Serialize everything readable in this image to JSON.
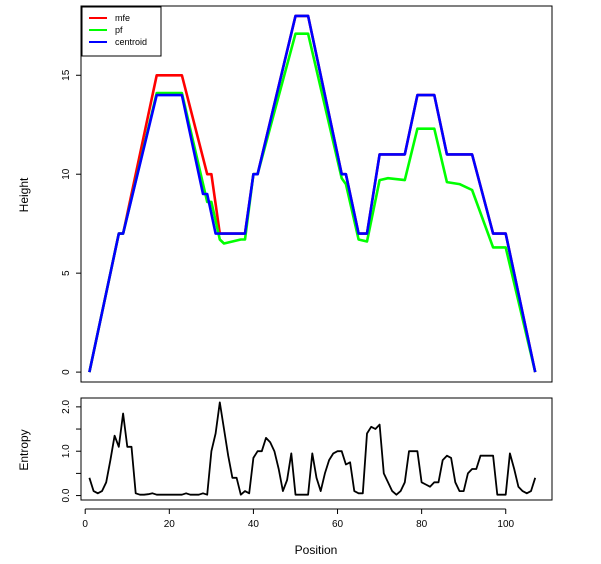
{
  "chart_data": [
    {
      "type": "line",
      "ylabel": "Height",
      "xlim": [
        -1,
        111
      ],
      "ylim": [
        -0.5,
        18.5
      ],
      "yticks": [
        0,
        5,
        10,
        15
      ],
      "legend": {
        "position": "top-left",
        "entries": [
          {
            "name": "mfe",
            "color": "#ff0000"
          },
          {
            "name": "pf",
            "color": "#00ff00"
          },
          {
            "name": "centroid",
            "color": "#0000ff"
          }
        ]
      },
      "series": [
        {
          "name": "mfe",
          "color": "#ff0000",
          "x": [
            1,
            8,
            9,
            17,
            23,
            29,
            30,
            32,
            38,
            40,
            41,
            50,
            53,
            61,
            62,
            65,
            67,
            70,
            76,
            79,
            83,
            86,
            92,
            97,
            100,
            107
          ],
          "y": [
            0,
            7,
            7,
            15,
            15,
            10,
            10,
            7,
            7,
            10,
            10,
            18,
            18,
            10,
            10,
            7,
            7,
            11,
            11,
            14,
            14,
            11,
            11,
            7,
            7,
            0
          ]
        },
        {
          "name": "pf",
          "color": "#00ff00",
          "x": [
            1,
            8,
            9,
            17,
            23,
            29,
            30,
            32,
            33,
            37,
            38,
            40,
            41,
            50,
            53,
            61,
            62,
            65,
            67,
            70,
            72,
            76,
            79,
            83,
            86,
            89,
            92,
            97,
            100,
            107
          ],
          "y": [
            0,
            7,
            7,
            14.1,
            14.1,
            8.6,
            8.6,
            6.7,
            6.5,
            6.7,
            6.7,
            10,
            10,
            17.1,
            17.1,
            9.8,
            9.5,
            6.7,
            6.6,
            9.7,
            9.8,
            9.7,
            12.3,
            12.3,
            9.6,
            9.5,
            9.2,
            6.3,
            6.3,
            0
          ]
        },
        {
          "name": "centroid",
          "color": "#0000ff",
          "x": [
            1,
            8,
            9,
            17,
            23,
            28,
            29,
            31,
            38,
            40,
            41,
            50,
            53,
            61,
            62,
            65,
            67,
            70,
            76,
            79,
            83,
            86,
            92,
            97,
            100,
            107
          ],
          "y": [
            0,
            7,
            7,
            14,
            14,
            9,
            9,
            7,
            7,
            10,
            10,
            18,
            18,
            10,
            10,
            7,
            7,
            11,
            11,
            14,
            14,
            11,
            11,
            7,
            7,
            0
          ]
        }
      ]
    },
    {
      "type": "line",
      "xlabel": "Position",
      "ylabel": "Entropy",
      "xlim": [
        -1,
        111
      ],
      "ylim": [
        -0.1,
        2.2
      ],
      "xticks": [
        0,
        20,
        40,
        60,
        80,
        100
      ],
      "yticks": [
        0.0,
        0.5,
        1.0,
        1.5,
        2.0
      ],
      "ytick_labels": [
        "0.0",
        "",
        "1.0",
        "",
        "2.0"
      ],
      "series": [
        {
          "name": "entropy",
          "color": "#000000",
          "x": [
            1,
            2,
            3,
            4,
            5,
            6,
            7,
            8,
            9,
            10,
            11,
            12,
            13,
            14,
            15,
            16,
            17,
            18,
            19,
            20,
            21,
            22,
            23,
            24,
            25,
            26,
            27,
            28,
            29,
            30,
            31,
            32,
            33,
            34,
            35,
            36,
            37,
            38,
            39,
            40,
            41,
            42,
            43,
            44,
            45,
            46,
            47,
            48,
            49,
            50,
            51,
            52,
            53,
            54,
            55,
            56,
            57,
            58,
            59,
            60,
            61,
            62,
            63,
            64,
            65,
            66,
            67,
            68,
            69,
            70,
            71,
            72,
            73,
            74,
            75,
            76,
            77,
            78,
            79,
            80,
            81,
            82,
            83,
            84,
            85,
            86,
            87,
            88,
            89,
            90,
            91,
            92,
            93,
            94,
            95,
            96,
            97,
            98,
            99,
            100,
            101,
            102,
            103,
            104,
            105,
            106,
            107
          ],
          "y": [
            0.4,
            0.1,
            0.05,
            0.1,
            0.3,
            0.8,
            1.35,
            1.1,
            1.85,
            1.1,
            1.1,
            0.05,
            0.02,
            0.02,
            0.03,
            0.05,
            0.02,
            0.02,
            0.02,
            0.02,
            0.02,
            0.02,
            0.02,
            0.05,
            0.02,
            0.02,
            0.02,
            0.05,
            0.02,
            1.0,
            1.4,
            2.1,
            1.5,
            0.9,
            0.4,
            0.4,
            0.02,
            0.1,
            0.05,
            0.85,
            1.0,
            1.0,
            1.3,
            1.2,
            1.0,
            0.6,
            0.1,
            0.35,
            0.95,
            0.02,
            0.02,
            0.02,
            0.02,
            0.95,
            0.4,
            0.1,
            0.5,
            0.8,
            0.95,
            1.0,
            1.0,
            0.7,
            0.75,
            0.1,
            0.05,
            0.05,
            1.4,
            1.55,
            1.5,
            1.6,
            0.5,
            0.3,
            0.1,
            0.02,
            0.1,
            0.3,
            1.0,
            1.0,
            1.0,
            0.3,
            0.25,
            0.2,
            0.3,
            0.3,
            0.8,
            0.9,
            0.85,
            0.3,
            0.1,
            0.1,
            0.5,
            0.6,
            0.6,
            0.9,
            0.9,
            0.9,
            0.9,
            0.02,
            0.02,
            0.02,
            0.95,
            0.6,
            0.2,
            0.1,
            0.05,
            0.1,
            0.4
          ]
        }
      ]
    }
  ]
}
